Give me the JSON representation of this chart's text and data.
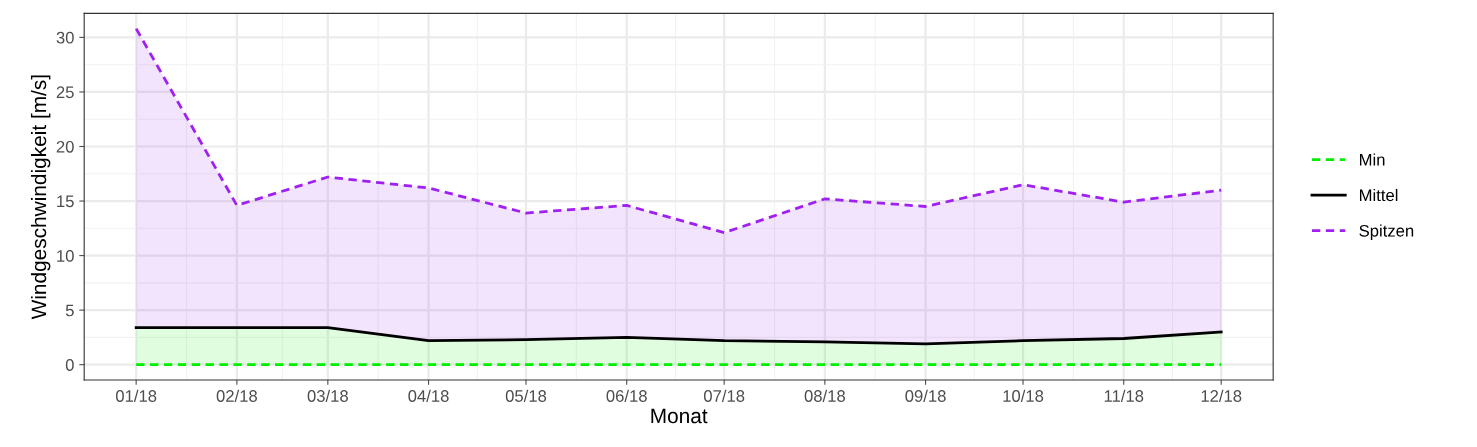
{
  "chart_data": {
    "type": "area",
    "xlabel": "Monat",
    "ylabel": "Windgeschwindigkeit [m/s]",
    "x": [
      "2018-01-01",
      "2018-02-01",
      "2018-03-01",
      "2018-04-01",
      "2018-05-01",
      "2018-06-01",
      "2018-07-01",
      "2018-08-01",
      "2018-09-01",
      "2018-10-01",
      "2018-11-01",
      "2018-12-01"
    ],
    "series": [
      {
        "name": "Min",
        "color": "#00ee00",
        "type": "line",
        "line_style": "dashed",
        "values": [
          0,
          0,
          0,
          0,
          0,
          0,
          0,
          0,
          0,
          0,
          0,
          0
        ]
      },
      {
        "name": "Mittel",
        "color": "#000000",
        "line_style": "solid",
        "values": [
          3.4,
          3.4,
          3.4,
          2.2,
          2.3,
          2.5,
          2.2,
          2.1,
          1.9,
          2.2,
          2.4,
          3.0
        ]
      },
      {
        "name": "Spitzen",
        "color": "#a020f0",
        "line_style": "dashed",
        "values": [
          30.8,
          14.6,
          17.2,
          16.2,
          13.9,
          14.6,
          12.1,
          15.2,
          14.5,
          16.5,
          14.9,
          16.0
        ]
      }
    ],
    "xlim": [
      "2017-12-16",
      "2018-12-17"
    ],
    "xticks": [
      {
        "value": "2018-01-01",
        "label": "01/18"
      },
      {
        "value": "2018-02-01",
        "label": "02/18"
      },
      {
        "value": "2018-03-01",
        "label": "03/18"
      },
      {
        "value": "2018-04-01",
        "label": "04/18"
      },
      {
        "value": "2018-05-01",
        "label": "05/18"
      },
      {
        "value": "2018-06-01",
        "label": "06/18"
      },
      {
        "value": "2018-07-01",
        "label": "07/18"
      },
      {
        "value": "2018-08-01",
        "label": "08/18"
      },
      {
        "value": "2018-09-01",
        "label": "09/18"
      },
      {
        "value": "2018-10-01",
        "label": "10/18"
      },
      {
        "value": "2018-11-01",
        "label": "11/18"
      },
      {
        "value": "2018-12-01",
        "label": "12/18"
      }
    ],
    "ylim": [
      -1.4,
      32.2
    ],
    "yticks": [
      0,
      5,
      10,
      15,
      20,
      25,
      30
    ],
    "grid": true,
    "legend": "right"
  }
}
